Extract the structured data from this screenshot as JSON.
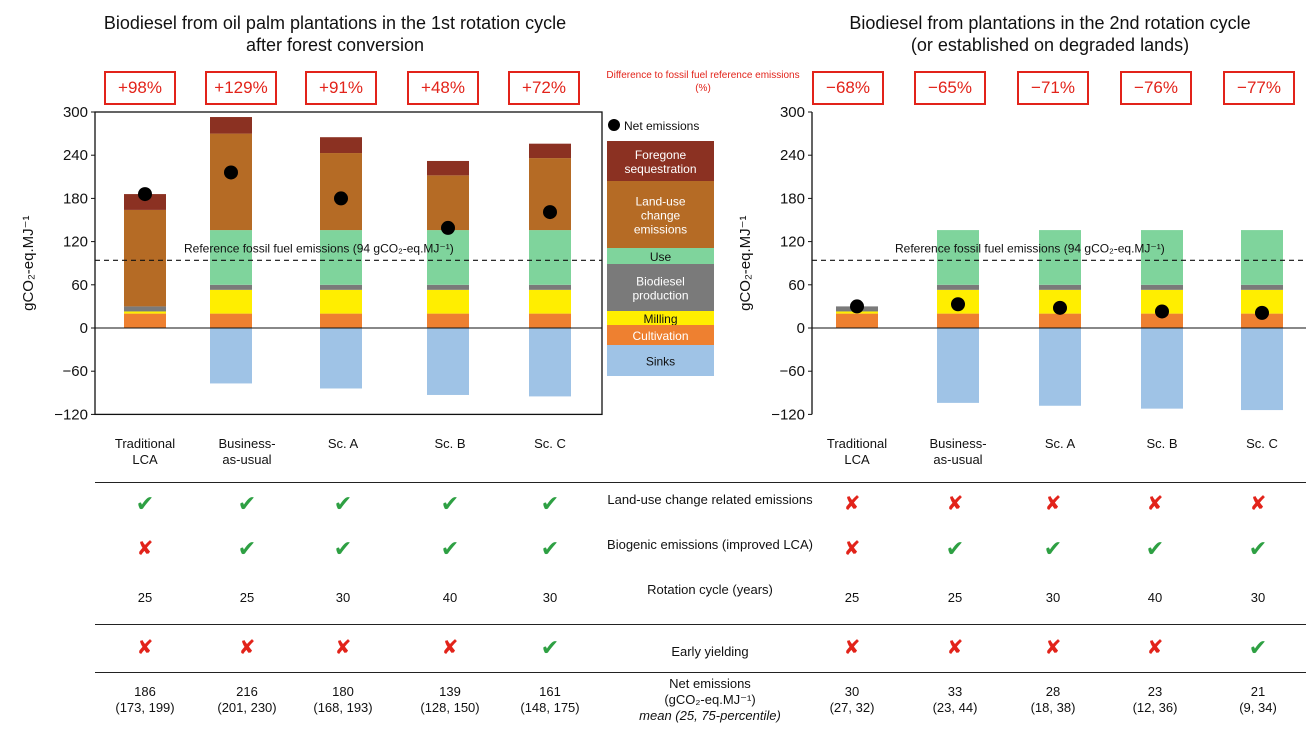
{
  "colors": {
    "foregone": "#8b3122",
    "luc": "#b56b25",
    "use": "#7fd49c",
    "biodiesel": "#7a7a7a",
    "milling": "#ffee00",
    "cultivation": "#ee8030",
    "sinks": "#9fc3e6",
    "red": "#e2231a",
    "green": "#2ea043"
  },
  "chart_data": [
    {
      "type": "bar",
      "title": "Biodiesel from oil palm plantations in the 1st rotation cycle after forest conversion",
      "ylabel": "gCO2-eq.MJ−1",
      "ylim": [
        -120,
        300
      ],
      "yticks": [
        300,
        240,
        180,
        120,
        60,
        0,
        -60,
        -120
      ],
      "categories": [
        "Traditional LCA",
        "Business-as-usual",
        "Sc. A",
        "Sc. B",
        "Sc. C"
      ],
      "series": [
        {
          "name": "Sinks",
          "values": [
            0,
            -77,
            -84,
            -93,
            -95
          ]
        },
        {
          "name": "Cultivation",
          "values": [
            20,
            20,
            20,
            20,
            20
          ]
        },
        {
          "name": "Milling",
          "values": [
            3,
            33,
            33,
            33,
            33
          ]
        },
        {
          "name": "Biodiesel production",
          "values": [
            7,
            7,
            7,
            7,
            7
          ]
        },
        {
          "name": "Use",
          "values": [
            0,
            76,
            76,
            76,
            76
          ]
        },
        {
          "name": "Land-use change emissions",
          "values": [
            134,
            134,
            107,
            76,
            100
          ]
        },
        {
          "name": "Foregone sequestration",
          "values": [
            22,
            23,
            22,
            20,
            20
          ]
        }
      ],
      "net_emissions": [
        186,
        216,
        180,
        139,
        161
      ],
      "reference_line": {
        "value": 94,
        "label": "Reference fossil fuel emissions (94 gCO2-eq.MJ−1)"
      },
      "difference": [
        "+98%",
        "+129%",
        "+91%",
        "+48%",
        "+72%"
      ]
    },
    {
      "type": "bar",
      "title": "Biodiesel from plantations in the 2nd rotation cycle (or established on degraded lands)",
      "ylabel": "gCO2-eq.MJ−1",
      "ylim": [
        -120,
        300
      ],
      "yticks": [
        300,
        240,
        180,
        120,
        60,
        0,
        -60,
        -120
      ],
      "categories": [
        "Traditional LCA",
        "Business-as-usual",
        "Sc. A",
        "Sc. B",
        "Sc. C"
      ],
      "series": [
        {
          "name": "Sinks",
          "values": [
            0,
            -104,
            -108,
            -112,
            -114
          ]
        },
        {
          "name": "Cultivation",
          "values": [
            20,
            20,
            20,
            20,
            20
          ]
        },
        {
          "name": "Milling",
          "values": [
            3,
            33,
            33,
            33,
            33
          ]
        },
        {
          "name": "Biodiesel production",
          "values": [
            7,
            7,
            7,
            7,
            7
          ]
        },
        {
          "name": "Use",
          "values": [
            0,
            76,
            76,
            76,
            76
          ]
        }
      ],
      "net_emissions": [
        30,
        33,
        28,
        23,
        21
      ],
      "reference_line": {
        "value": 94,
        "label": "Reference fossil fuel emissions (94 gCO2-eq.MJ−1)"
      },
      "difference": [
        "−68%",
        "−65%",
        "−71%",
        "−76%",
        "−77%"
      ]
    }
  ],
  "left_title": "Biodiesel from oil palm plantations in the 1st rotation cycle after forest conversion",
  "right_title": "Biodiesel from plantations in the 2nd rotation cycle (or established on degraded lands)",
  "diff_note": "Difference to fossil fuel reference emissions (%)",
  "left_diff": [
    "+98%",
    "+129%",
    "+91%",
    "+48%",
    "+72%"
  ],
  "right_diff": [
    "−68%",
    "−65%",
    "−71%",
    "−76%",
    "−77%"
  ],
  "categories": [
    "Traditional\nLCA",
    "Business-\nas-usual",
    "Sc. A",
    "Sc. B",
    "Sc. C"
  ],
  "legend": {
    "net": "Net emissions",
    "items": [
      {
        "label": "Foregone sequestration",
        "key": "foregone",
        "value": 40
      },
      {
        "label": "Land-use change emissions",
        "key": "luc",
        "value": 67
      },
      {
        "label": "Use",
        "key": "use",
        "value": 16
      },
      {
        "label": "Biodiesel production",
        "key": "biodiesel",
        "value": 47
      },
      {
        "label": "Milling",
        "key": "milling",
        "value": 14
      },
      {
        "label": "Cultivation",
        "key": "cultivation",
        "value": 20
      },
      {
        "label": "Sinks",
        "key": "sinks",
        "value": 31
      }
    ]
  },
  "ref_label": "Reference fossil fuel emissions (94 gCO₂-eq.MJ⁻¹)",
  "ylabel": "gCO₂-eq.MJ⁻¹",
  "table": {
    "rows": [
      {
        "label": "Land-use change related emissions",
        "left": [
          "check",
          "check",
          "check",
          "check",
          "check"
        ],
        "right": [
          "cross",
          "cross",
          "cross",
          "cross",
          "cross"
        ]
      },
      {
        "label": "Biogenic emissions (improved LCA)",
        "left": [
          "cross",
          "check",
          "check",
          "check",
          "check"
        ],
        "right": [
          "cross",
          "check",
          "check",
          "check",
          "check"
        ]
      },
      {
        "label": "Rotation cycle (years)",
        "left": [
          "25",
          "25",
          "30",
          "40",
          "30"
        ],
        "right": [
          "25",
          "25",
          "30",
          "40",
          "30"
        ]
      },
      {
        "label": "Early yielding",
        "left": [
          "cross",
          "cross",
          "cross",
          "cross",
          "check"
        ],
        "right": [
          "cross",
          "cross",
          "cross",
          "cross",
          "check"
        ]
      }
    ],
    "net": {
      "label_line1": "Net emissions",
      "label_line2": "(gCO₂-eq.MJ⁻¹)",
      "label_line3": "mean (25, 75-percentile)",
      "left": [
        [
          "186",
          "(173, 199)"
        ],
        [
          "216",
          "(201, 230)"
        ],
        [
          "180",
          "(168, 193)"
        ],
        [
          "139",
          "(128, 150)"
        ],
        [
          "161",
          "(148, 175)"
        ]
      ],
      "right": [
        [
          "30",
          "(27, 32)"
        ],
        [
          "33",
          "(23, 44)"
        ],
        [
          "28",
          "(18, 38)"
        ],
        [
          "23",
          "(12, 36)"
        ],
        [
          "21",
          "(9, 34)"
        ]
      ]
    }
  }
}
